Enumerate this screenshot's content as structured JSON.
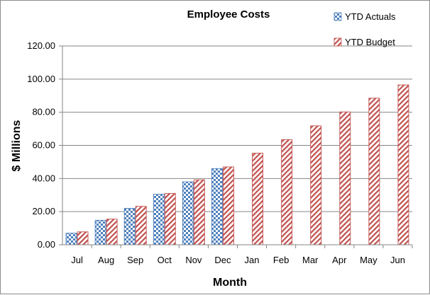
{
  "chart_data": {
    "type": "bar",
    "title": "Employee Costs",
    "xlabel": "Month",
    "ylabel": "$ Millions",
    "ylim": [
      0,
      120
    ],
    "yticks": [
      "0.00",
      "20.00",
      "40.00",
      "60.00",
      "80.00",
      "100.00",
      "120.00"
    ],
    "grid": "horizontal",
    "legend_position": "top-right",
    "categories": [
      "Jul",
      "Aug",
      "Sep",
      "Oct",
      "Nov",
      "Dec",
      "Jan",
      "Feb",
      "Mar",
      "Apr",
      "May",
      "Jun"
    ],
    "series": [
      {
        "name": "YTD Actuals",
        "color": "#4f81bd",
        "pattern": "checkerboard",
        "values": [
          7.0,
          14.8,
          22.0,
          30.5,
          38.0,
          46.0,
          null,
          null,
          null,
          null,
          null,
          null
        ]
      },
      {
        "name": "YTD Budget",
        "color": "#c0504d",
        "pattern": "diagonal-hatch",
        "values": [
          7.8,
          15.5,
          23.2,
          31.0,
          39.2,
          47.0,
          55.3,
          63.5,
          71.8,
          80.2,
          88.5,
          96.5
        ]
      }
    ]
  }
}
